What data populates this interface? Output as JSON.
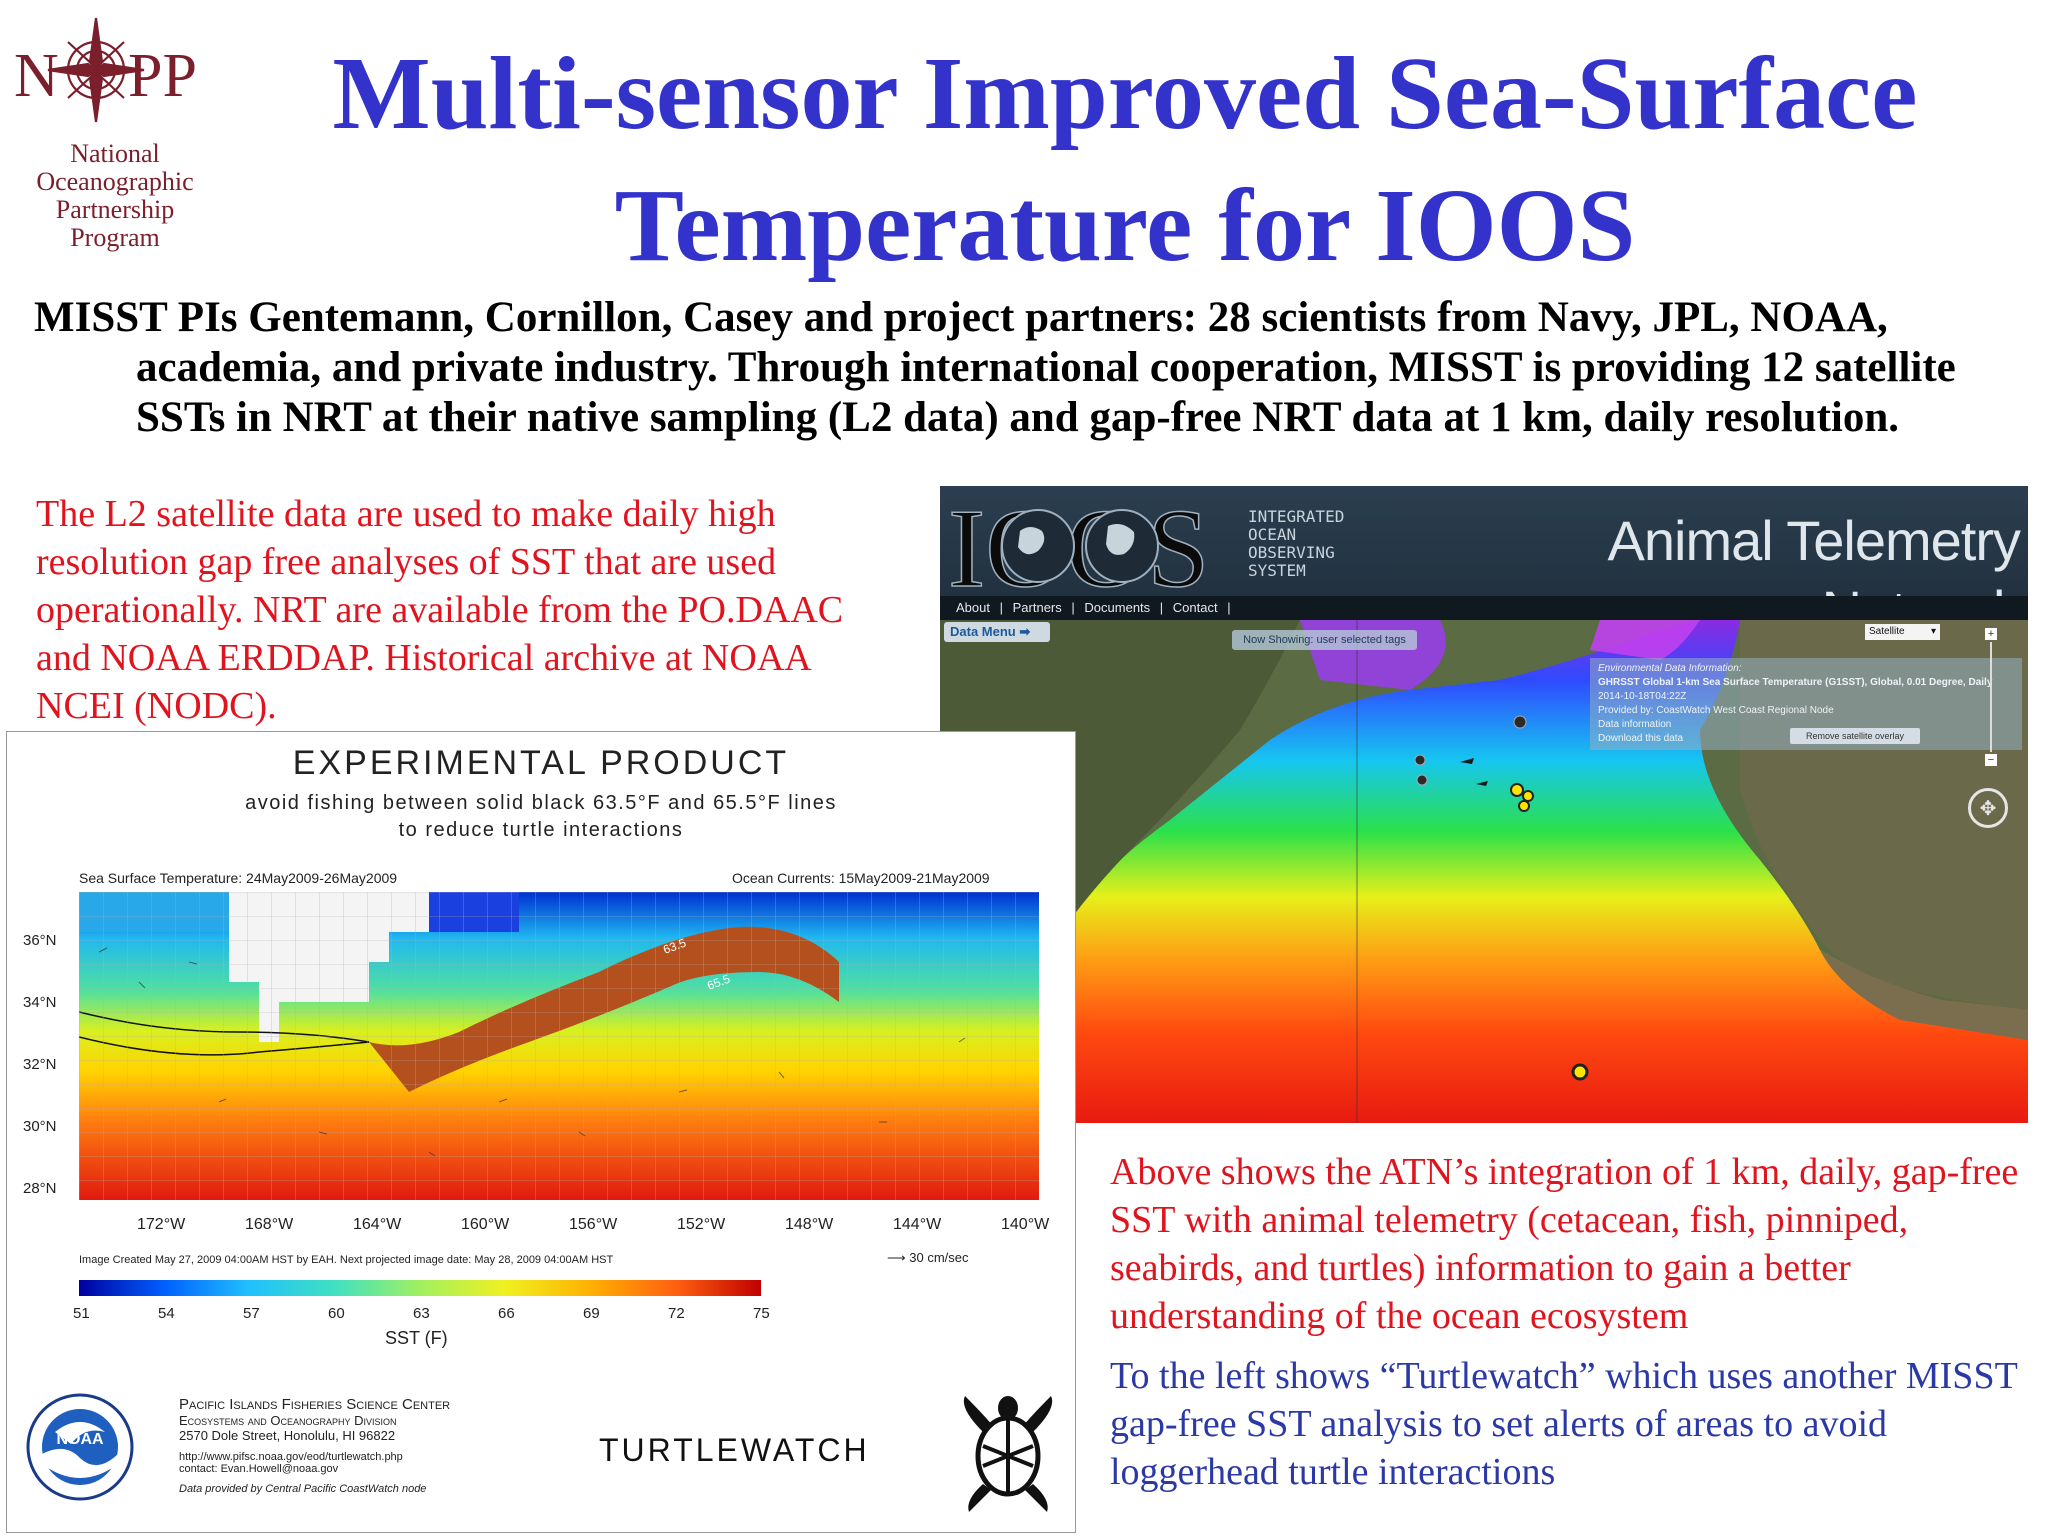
{
  "logo": {
    "wordmark": "NOPP",
    "lines": [
      "National",
      "Oceanographic",
      "Partnership",
      "Program"
    ],
    "color": "#7a1f2b"
  },
  "title": {
    "line1": "Multi-sensor Improved Sea-Surface",
    "line2": "Temperature for IOOS",
    "color": "#3333cc"
  },
  "intro": "MISST PIs Gentemann, Cornillon, Casey and project partners: 28 scientists from Navy, JPL, NOAA, academia, and private industry.  Through international cooperation, MISST is providing 12 satellite SSTs in NRT at their native sampling (L2 data) and gap-free NRT data at 1 km, daily resolution.",
  "red_left": "The L2 satellite data are used to make daily high resolution gap free analyses of SST that are used operationally.  NRT are available from the PO.DAAC and NOAA ERDDAP.  Historical archive at NOAA NCEI (NODC).",
  "atn": {
    "brand_ioos": "IOOS",
    "brand_sub": [
      "INTEGRATED",
      "OCEAN",
      "OBSERVING",
      "SYSTEM"
    ],
    "network_title": "Animal Telemetry Network",
    "menu": [
      "About",
      "|",
      "Partners",
      "|",
      "Documents",
      "|",
      "Contact",
      "|"
    ],
    "data_menu": "Data Menu",
    "now_showing": "Now Showing: user selected tags",
    "layer_select": "Satellite",
    "info_lines": [
      "Environmental Data Information:",
      "GHRSST Global 1-km Sea Surface Temperature (G1SST), Global, 0.01 Degree, Daily",
      "2014-10-18T04:22Z",
      "Provided by: CoastWatch West Coast Regional Node",
      "Data information",
      "Download this data"
    ],
    "remove_button": "Remove satellite overlay",
    "zoom_in": "+",
    "zoom_out": "−"
  },
  "turtlewatch": {
    "header": "EXPERIMENTAL PRODUCT",
    "subheader1": "avoid fishing between solid black 63.5°F and 65.5°F lines",
    "subheader2": "to reduce turtle interactions",
    "sst_label": "Sea Surface Temperature: 24May2009-26May2009",
    "currents_label": "Ocean Currents: 15May2009-21May2009",
    "lat_ticks": [
      "36°N",
      "34°N",
      "32°N",
      "30°N",
      "28°N"
    ],
    "lon_ticks": [
      "172°W",
      "168°W",
      "164°W",
      "160°W",
      "156°W",
      "152°W",
      "148°W",
      "144°W",
      "140°W"
    ],
    "contour_labels": [
      "63.5",
      "65.5"
    ],
    "image_note": "Image Created May 27, 2009 04:00AM HST by EAH. Next projected image date: May 28, 2009 04:00AM HST",
    "scale_arrow": "30 cm/sec",
    "colorbar_ticks": [
      "51",
      "54",
      "57",
      "60",
      "63",
      "66",
      "69",
      "72",
      "75"
    ],
    "colorbar_label": "SST (F)",
    "noaa": "NOAA",
    "center_name": "Pacific Islands Fisheries Science Center",
    "division": "Ecosystems and Oceanography Division",
    "address": "2570 Dole Street, Honolulu, HI 96822",
    "url": "http://www.pifsc.noaa.gov/eod/turtlewatch.php",
    "contact": "contact: Evan.Howell@noaa.gov",
    "provided": "Data provided by Central Pacific CoastWatch node",
    "brand": "TURTLEWATCH"
  },
  "red_right": "Above shows the ATN’s integration of 1 km, daily, gap-free SST with animal telemetry (cetacean, fish, pinniped, seabirds, and turtles) information to gain a better understanding of the ocean ecosystem",
  "blue_right": "To the left shows “Turtlewatch” which uses another MISST gap-free SST analysis to set alerts of areas to avoid loggerhead turtle interactions"
}
